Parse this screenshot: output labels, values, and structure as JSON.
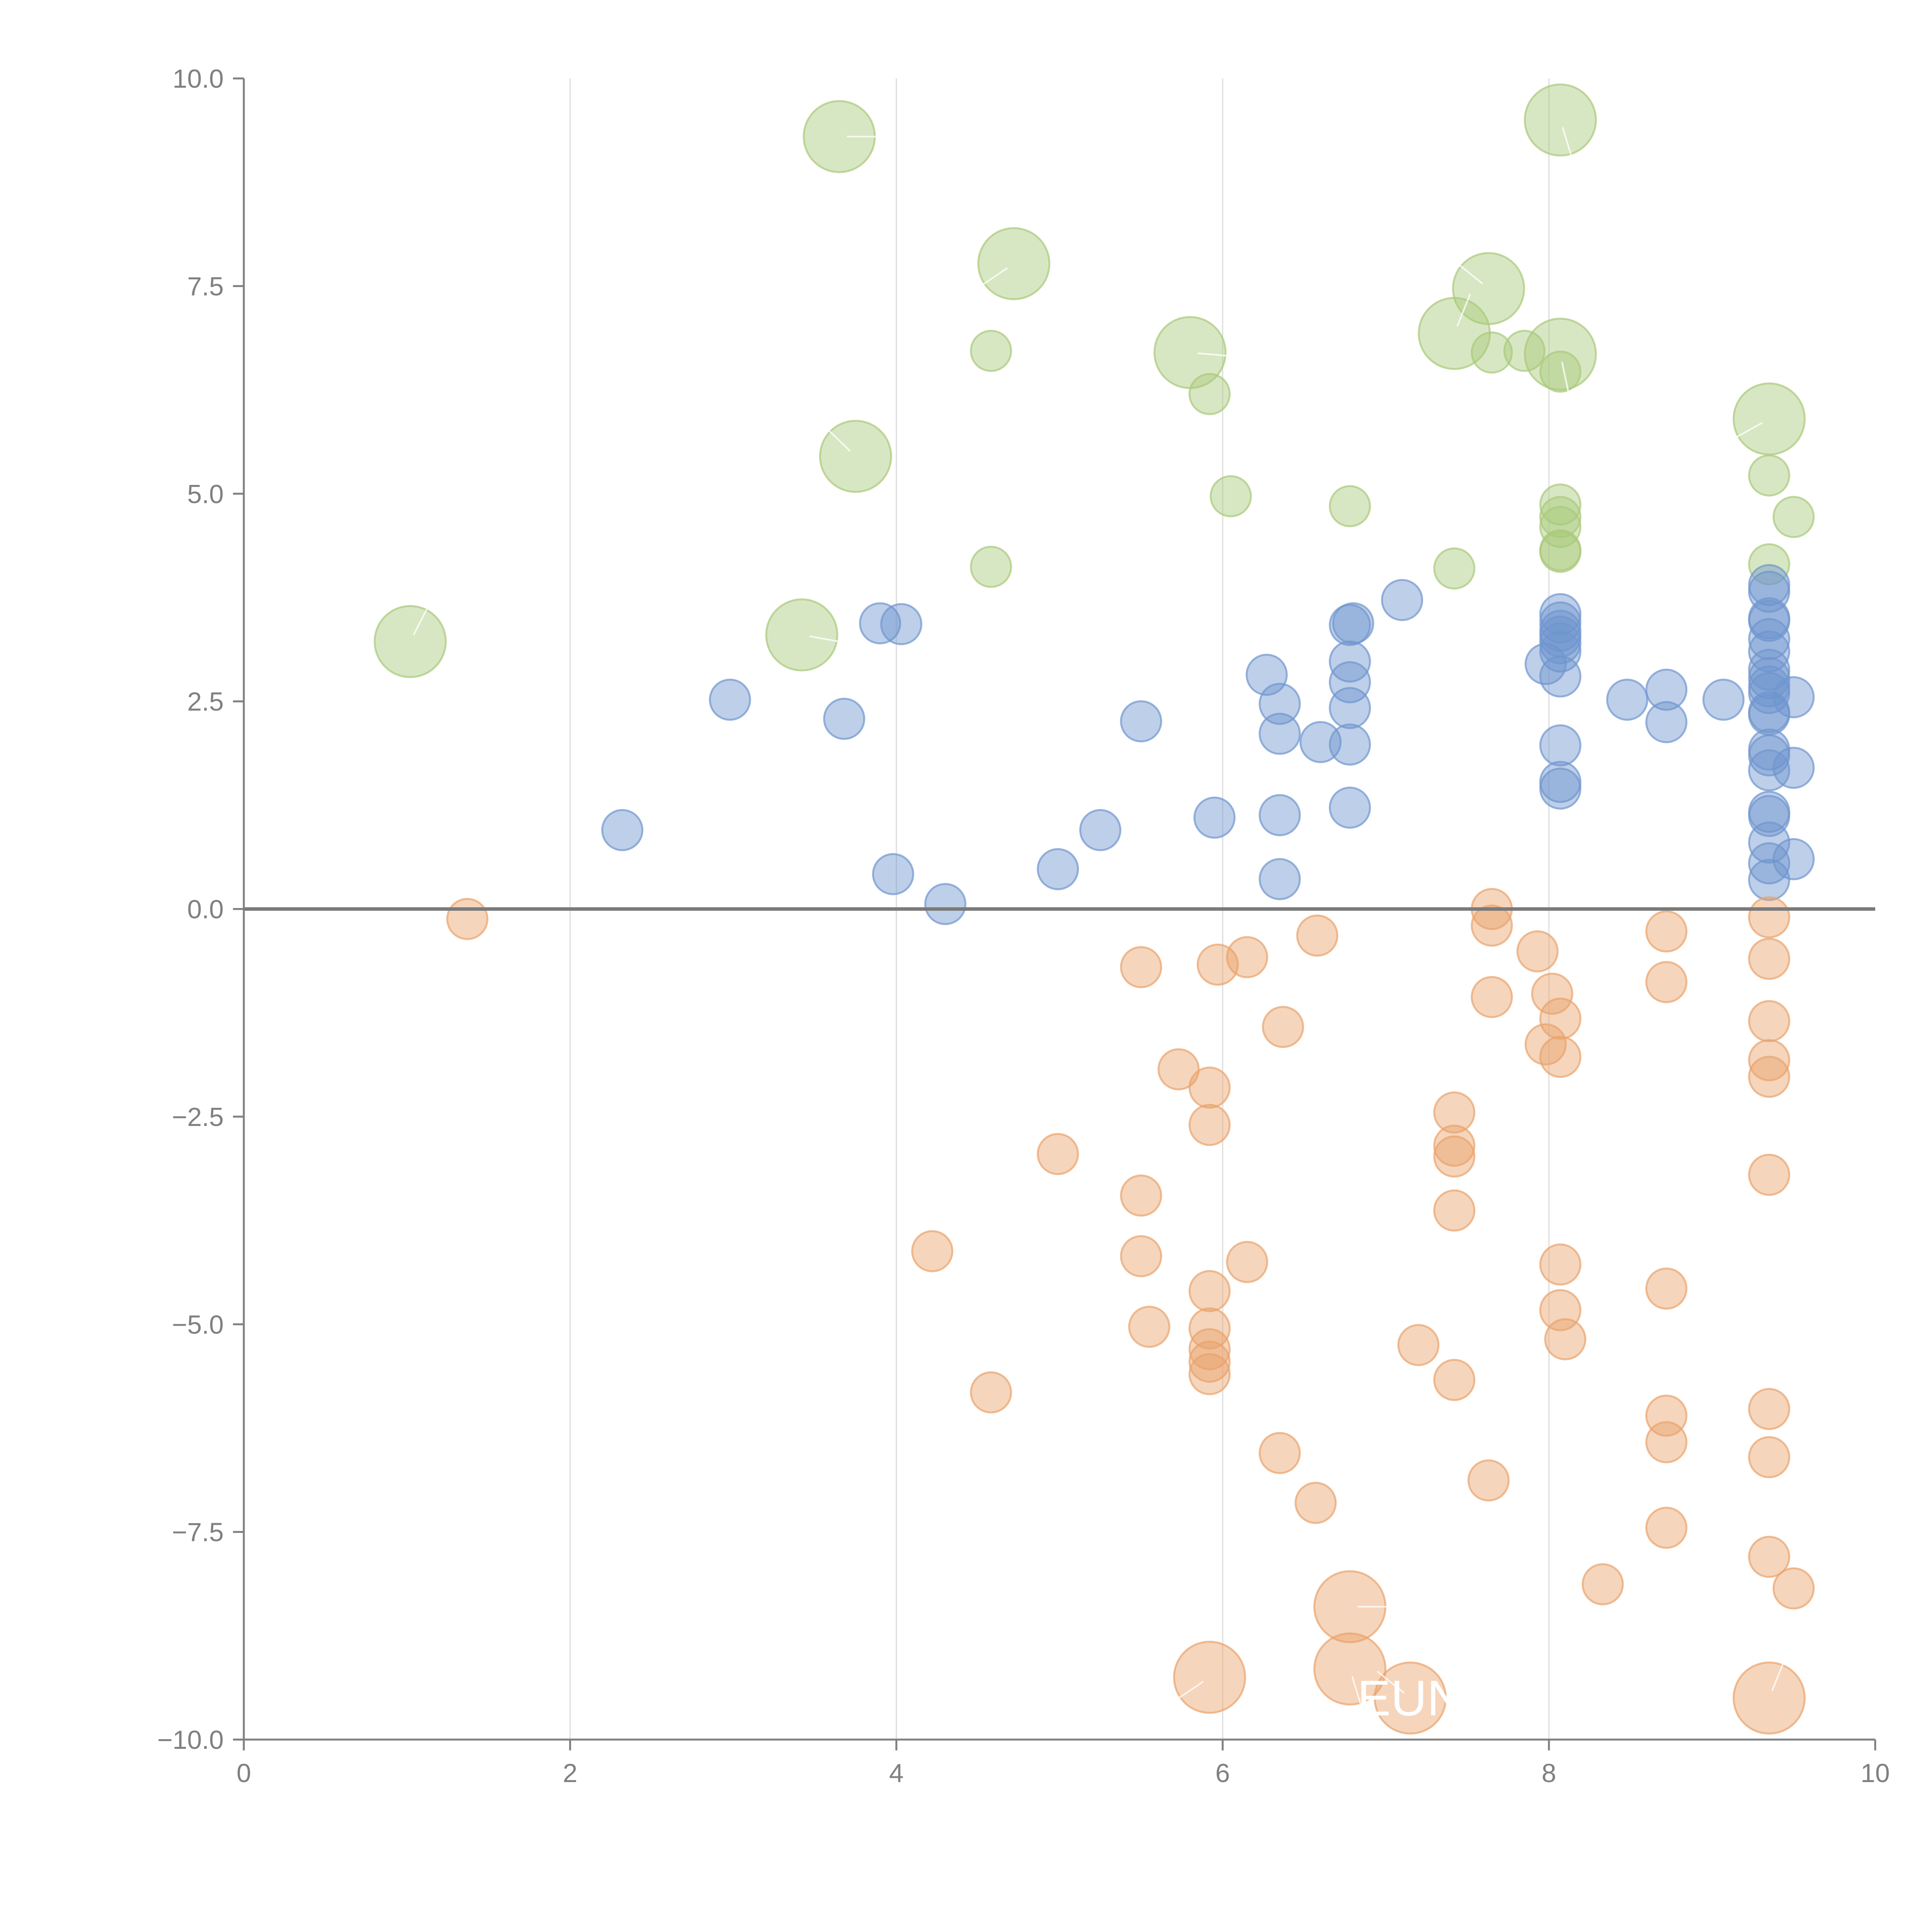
{
  "chart_data": {
    "type": "scatter",
    "title": "",
    "xlabel": "",
    "ylabel": "",
    "xlim": [
      0,
      10
    ],
    "ylim": [
      -10,
      10
    ],
    "x_ticks": [
      "0",
      "2",
      "4",
      "6",
      "8",
      "10"
    ],
    "y_ticks": [
      "10.0",
      "7.5",
      "5.0",
      "2.5",
      "0.0",
      "−2.5",
      "−5.0",
      "−7.5",
      "−10.0"
    ],
    "x_tick_values": [
      0,
      2,
      4,
      6,
      8,
      10
    ],
    "y_tick_values": [
      10,
      7.5,
      5,
      2.5,
      0,
      -2.5,
      -5,
      -7.5,
      -10
    ],
    "grid_x": true,
    "grid_y": false,
    "reference_line_y": 0,
    "colors": {
      "green": "#a9c97a",
      "blue": "#6f95cf",
      "orange": "#e9a26b"
    },
    "series": [
      {
        "name": "green",
        "color": "#a9c97a",
        "points": [
          {
            "x": 3.65,
            "y": 9.3,
            "size": 3
          },
          {
            "x": 8.07,
            "y": 9.5,
            "size": 3
          },
          {
            "x": 4.72,
            "y": 7.77,
            "size": 3
          },
          {
            "x": 7.63,
            "y": 7.47,
            "size": 3
          },
          {
            "x": 7.42,
            "y": 6.93,
            "size": 3
          },
          {
            "x": 5.8,
            "y": 6.7,
            "size": 3
          },
          {
            "x": 8.07,
            "y": 6.68,
            "size": 3
          },
          {
            "x": 4.58,
            "y": 6.72,
            "size": 1
          },
          {
            "x": 7.65,
            "y": 6.7,
            "size": 1
          },
          {
            "x": 7.85,
            "y": 6.72,
            "size": 1
          },
          {
            "x": 8.07,
            "y": 6.47,
            "size": 1
          },
          {
            "x": 5.92,
            "y": 6.2,
            "size": 1
          },
          {
            "x": 9.35,
            "y": 5.9,
            "size": 3
          },
          {
            "x": 3.75,
            "y": 5.45,
            "size": 3
          },
          {
            "x": 9.35,
            "y": 5.22,
            "size": 1
          },
          {
            "x": 6.05,
            "y": 4.97,
            "size": 1
          },
          {
            "x": 6.78,
            "y": 4.85,
            "size": 1
          },
          {
            "x": 8.07,
            "y": 4.87,
            "size": 1
          },
          {
            "x": 8.07,
            "y": 4.72,
            "size": 1
          },
          {
            "x": 8.07,
            "y": 4.6,
            "size": 1
          },
          {
            "x": 9.5,
            "y": 4.72,
            "size": 1
          },
          {
            "x": 8.07,
            "y": 4.3,
            "size": 1
          },
          {
            "x": 8.07,
            "y": 4.32,
            "size": 1
          },
          {
            "x": 4.58,
            "y": 4.12,
            "size": 1
          },
          {
            "x": 7.42,
            "y": 4.1,
            "size": 1
          },
          {
            "x": 9.35,
            "y": 4.15,
            "size": 1
          },
          {
            "x": 1.02,
            "y": 3.22,
            "size": 3
          },
          {
            "x": 3.42,
            "y": 3.3,
            "size": 3
          }
        ]
      },
      {
        "name": "blue",
        "color": "#6f95cf",
        "points": [
          {
            "x": 2.32,
            "y": 0.95,
            "size": 1
          },
          {
            "x": 2.98,
            "y": 2.52,
            "size": 1
          },
          {
            "x": 3.68,
            "y": 2.29,
            "size": 1
          },
          {
            "x": 3.9,
            "y": 3.44,
            "size": 1
          },
          {
            "x": 4.03,
            "y": 3.43,
            "size": 1
          },
          {
            "x": 3.98,
            "y": 0.42,
            "size": 1
          },
          {
            "x": 4.3,
            "y": 0.06,
            "size": 1
          },
          {
            "x": 4.99,
            "y": 0.48,
            "size": 1
          },
          {
            "x": 5.25,
            "y": 0.95,
            "size": 1
          },
          {
            "x": 5.5,
            "y": 2.26,
            "size": 1
          },
          {
            "x": 5.95,
            "y": 1.1,
            "size": 1
          },
          {
            "x": 6.27,
            "y": 2.82,
            "size": 1
          },
          {
            "x": 6.35,
            "y": 2.47,
            "size": 1
          },
          {
            "x": 6.35,
            "y": 2.11,
            "size": 1
          },
          {
            "x": 6.35,
            "y": 1.13,
            "size": 1
          },
          {
            "x": 6.35,
            "y": 0.36,
            "size": 1
          },
          {
            "x": 6.6,
            "y": 2.01,
            "size": 1
          },
          {
            "x": 6.78,
            "y": 3.42,
            "size": 1
          },
          {
            "x": 6.8,
            "y": 3.44,
            "size": 1
          },
          {
            "x": 6.78,
            "y": 2.98,
            "size": 1
          },
          {
            "x": 6.78,
            "y": 2.73,
            "size": 1
          },
          {
            "x": 6.78,
            "y": 2.42,
            "size": 1
          },
          {
            "x": 6.78,
            "y": 1.98,
            "size": 1
          },
          {
            "x": 6.78,
            "y": 1.22,
            "size": 1
          },
          {
            "x": 7.1,
            "y": 3.72,
            "size": 1
          },
          {
            "x": 7.98,
            "y": 2.95,
            "size": 1
          },
          {
            "x": 8.07,
            "y": 3.55,
            "size": 1
          },
          {
            "x": 8.07,
            "y": 3.45,
            "size": 1
          },
          {
            "x": 8.07,
            "y": 3.35,
            "size": 1
          },
          {
            "x": 8.07,
            "y": 3.28,
            "size": 1
          },
          {
            "x": 8.07,
            "y": 3.2,
            "size": 1
          },
          {
            "x": 8.07,
            "y": 3.1,
            "size": 1
          },
          {
            "x": 8.07,
            "y": 2.8,
            "size": 1
          },
          {
            "x": 8.07,
            "y": 1.97,
            "size": 1
          },
          {
            "x": 8.07,
            "y": 1.53,
            "size": 1
          },
          {
            "x": 8.07,
            "y": 1.45,
            "size": 1
          },
          {
            "x": 8.48,
            "y": 2.52,
            "size": 1
          },
          {
            "x": 8.72,
            "y": 2.64,
            "size": 1
          },
          {
            "x": 8.72,
            "y": 2.25,
            "size": 1
          },
          {
            "x": 9.07,
            "y": 2.52,
            "size": 1
          },
          {
            "x": 9.35,
            "y": 3.9,
            "size": 1
          },
          {
            "x": 9.35,
            "y": 3.82,
            "size": 1
          },
          {
            "x": 9.35,
            "y": 3.5,
            "size": 1
          },
          {
            "x": 9.35,
            "y": 3.47,
            "size": 1
          },
          {
            "x": 9.35,
            "y": 3.25,
            "size": 1
          },
          {
            "x": 9.35,
            "y": 3.1,
            "size": 1
          },
          {
            "x": 9.35,
            "y": 2.88,
            "size": 1
          },
          {
            "x": 9.35,
            "y": 2.78,
            "size": 1
          },
          {
            "x": 9.35,
            "y": 2.68,
            "size": 1
          },
          {
            "x": 9.35,
            "y": 2.6,
            "size": 1
          },
          {
            "x": 9.35,
            "y": 2.37,
            "size": 1
          },
          {
            "x": 9.35,
            "y": 2.34,
            "size": 1
          },
          {
            "x": 9.35,
            "y": 1.92,
            "size": 1
          },
          {
            "x": 9.35,
            "y": 1.85,
            "size": 1
          },
          {
            "x": 9.35,
            "y": 1.67,
            "size": 1
          },
          {
            "x": 9.35,
            "y": 1.17,
            "size": 1
          },
          {
            "x": 9.35,
            "y": 1.12,
            "size": 1
          },
          {
            "x": 9.35,
            "y": 0.8,
            "size": 1
          },
          {
            "x": 9.35,
            "y": 0.55,
            "size": 1
          },
          {
            "x": 9.35,
            "y": 0.35,
            "size": 1
          },
          {
            "x": 9.5,
            "y": 2.55,
            "size": 1
          },
          {
            "x": 9.5,
            "y": 1.7,
            "size": 1
          },
          {
            "x": 9.5,
            "y": 0.6,
            "size": 1
          }
        ]
      },
      {
        "name": "orange",
        "color": "#e9a26b",
        "points": [
          {
            "x": 1.37,
            "y": -0.12,
            "size": 1
          },
          {
            "x": 4.22,
            "y": -4.12,
            "size": 1
          },
          {
            "x": 4.58,
            "y": -5.82,
            "size": 1
          },
          {
            "x": 4.99,
            "y": -2.95,
            "size": 1
          },
          {
            "x": 5.5,
            "y": -0.7,
            "size": 1
          },
          {
            "x": 5.5,
            "y": -3.45,
            "size": 1
          },
          {
            "x": 5.5,
            "y": -4.18,
            "size": 1
          },
          {
            "x": 5.55,
            "y": -5.03,
            "size": 1
          },
          {
            "x": 5.73,
            "y": -1.93,
            "size": 1
          },
          {
            "x": 5.92,
            "y": -2.15,
            "size": 1
          },
          {
            "x": 5.92,
            "y": -2.6,
            "size": 1
          },
          {
            "x": 5.92,
            "y": -4.6,
            "size": 1
          },
          {
            "x": 5.92,
            "y": -5.05,
            "size": 1
          },
          {
            "x": 5.92,
            "y": -5.3,
            "size": 1
          },
          {
            "x": 5.92,
            "y": -5.45,
            "size": 1
          },
          {
            "x": 5.92,
            "y": -5.6,
            "size": 1
          },
          {
            "x": 5.97,
            "y": -0.67,
            "size": 1
          },
          {
            "x": 6.15,
            "y": -0.58,
            "size": 1
          },
          {
            "x": 6.15,
            "y": -4.25,
            "size": 1
          },
          {
            "x": 6.37,
            "y": -1.42,
            "size": 1
          },
          {
            "x": 6.35,
            "y": -6.55,
            "size": 1
          },
          {
            "x": 6.58,
            "y": -0.32,
            "size": 1
          },
          {
            "x": 6.57,
            "y": -7.15,
            "size": 1
          },
          {
            "x": 7.2,
            "y": -5.25,
            "size": 1
          },
          {
            "x": 7.42,
            "y": -2.45,
            "size": 1
          },
          {
            "x": 7.42,
            "y": -2.85,
            "size": 1
          },
          {
            "x": 7.42,
            "y": -2.98,
            "size": 1
          },
          {
            "x": 7.42,
            "y": -3.63,
            "size": 1
          },
          {
            "x": 7.42,
            "y": -5.67,
            "size": 1
          },
          {
            "x": 7.65,
            "y": 0.0,
            "size": 1
          },
          {
            "x": 7.65,
            "y": -0.2,
            "size": 1
          },
          {
            "x": 7.65,
            "y": -1.06,
            "size": 1
          },
          {
            "x": 7.63,
            "y": -6.88,
            "size": 1
          },
          {
            "x": 7.93,
            "y": -0.51,
            "size": 1
          },
          {
            "x": 8.02,
            "y": -1.02,
            "size": 1
          },
          {
            "x": 7.98,
            "y": -1.63,
            "size": 1
          },
          {
            "x": 8.07,
            "y": -1.32,
            "size": 1
          },
          {
            "x": 8.07,
            "y": -1.78,
            "size": 1
          },
          {
            "x": 8.07,
            "y": -4.28,
            "size": 1
          },
          {
            "x": 8.07,
            "y": -4.83,
            "size": 1
          },
          {
            "x": 8.1,
            "y": -5.18,
            "size": 1
          },
          {
            "x": 8.33,
            "y": -8.13,
            "size": 1
          },
          {
            "x": 8.72,
            "y": -0.27,
            "size": 1
          },
          {
            "x": 8.72,
            "y": -0.88,
            "size": 1
          },
          {
            "x": 8.72,
            "y": -4.57,
            "size": 1
          },
          {
            "x": 8.72,
            "y": -6.1,
            "size": 1
          },
          {
            "x": 8.72,
            "y": -6.42,
            "size": 1
          },
          {
            "x": 8.72,
            "y": -7.45,
            "size": 1
          },
          {
            "x": 9.35,
            "y": -0.1,
            "size": 1
          },
          {
            "x": 9.35,
            "y": -0.6,
            "size": 1
          },
          {
            "x": 9.35,
            "y": -1.35,
            "size": 1
          },
          {
            "x": 9.35,
            "y": -1.82,
            "size": 1
          },
          {
            "x": 9.35,
            "y": -2.02,
            "size": 1
          },
          {
            "x": 9.35,
            "y": -3.2,
            "size": 1
          },
          {
            "x": 9.35,
            "y": -6.02,
            "size": 1
          },
          {
            "x": 9.35,
            "y": -6.6,
            "size": 1
          },
          {
            "x": 9.35,
            "y": -7.8,
            "size": 1
          },
          {
            "x": 9.5,
            "y": -8.18,
            "size": 1
          },
          {
            "x": 6.78,
            "y": -8.4,
            "size": 3
          },
          {
            "x": 6.78,
            "y": -9.15,
            "size": 3
          },
          {
            "x": 5.92,
            "y": -9.25,
            "size": 3
          },
          {
            "x": 7.15,
            "y": -9.5,
            "size": 3
          },
          {
            "x": 9.35,
            "y": -9.5,
            "size": 3
          }
        ]
      }
    ],
    "annotations": [
      {
        "text": "EUN",
        "x": 7.15,
        "y": -9.5
      }
    ]
  }
}
